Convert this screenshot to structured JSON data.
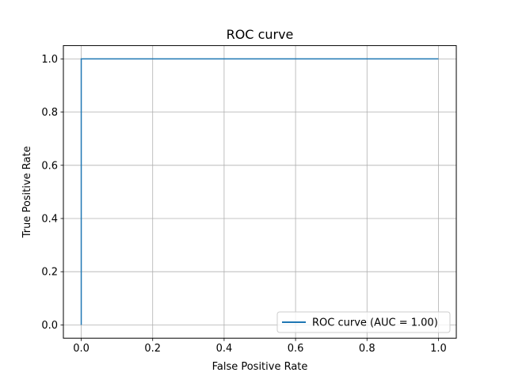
{
  "chart_data": {
    "type": "line",
    "title": "ROC curve",
    "xlabel": "False Positive Rate",
    "ylabel": "True Positive Rate",
    "xlim": [
      -0.05,
      1.05
    ],
    "ylim": [
      -0.05,
      1.05
    ],
    "grid": true,
    "legend_position": "lower-right",
    "x_ticks": [
      "0.0",
      "0.2",
      "0.4",
      "0.6",
      "0.8",
      "1.0"
    ],
    "y_ticks": [
      "0.0",
      "0.2",
      "0.4",
      "0.6",
      "0.8",
      "1.0"
    ],
    "series": [
      {
        "name": "ROC curve (AUC = 1.00)",
        "color": "#1f77b4",
        "x": [
          0.0,
          0.0,
          1.0
        ],
        "y": [
          0.0,
          1.0,
          1.0
        ]
      }
    ]
  }
}
